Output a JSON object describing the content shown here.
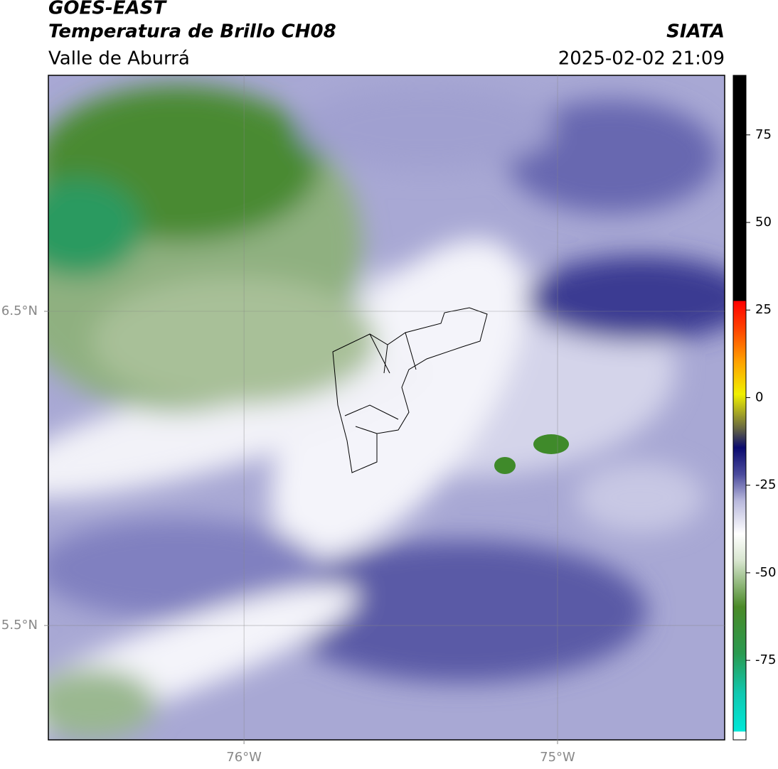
{
  "header": {
    "title": "GOES-EAST",
    "subtitle": "Temperatura de Brillo CH08",
    "region": "Valle de Aburrá",
    "source": "SIATA",
    "datetime": "2025-02-02 21:09"
  },
  "map": {
    "lonlim": [
      -76.624,
      -74.467
    ],
    "latlim": [
      5.136,
      7.251
    ],
    "lonticks": [
      {
        "value": -76,
        "label": "76°W"
      },
      {
        "value": -75,
        "label": "75°W"
      }
    ],
    "latticks": [
      {
        "value": 6.5,
        "label": "6.5°N"
      },
      {
        "value": 5.5,
        "label": "5.5°N"
      }
    ],
    "grid": true
  },
  "colorbar": {
    "lim": [
      -97.7,
      92
    ],
    "ticks": [
      75,
      50,
      25,
      0,
      -25,
      -50,
      -75
    ]
  }
}
